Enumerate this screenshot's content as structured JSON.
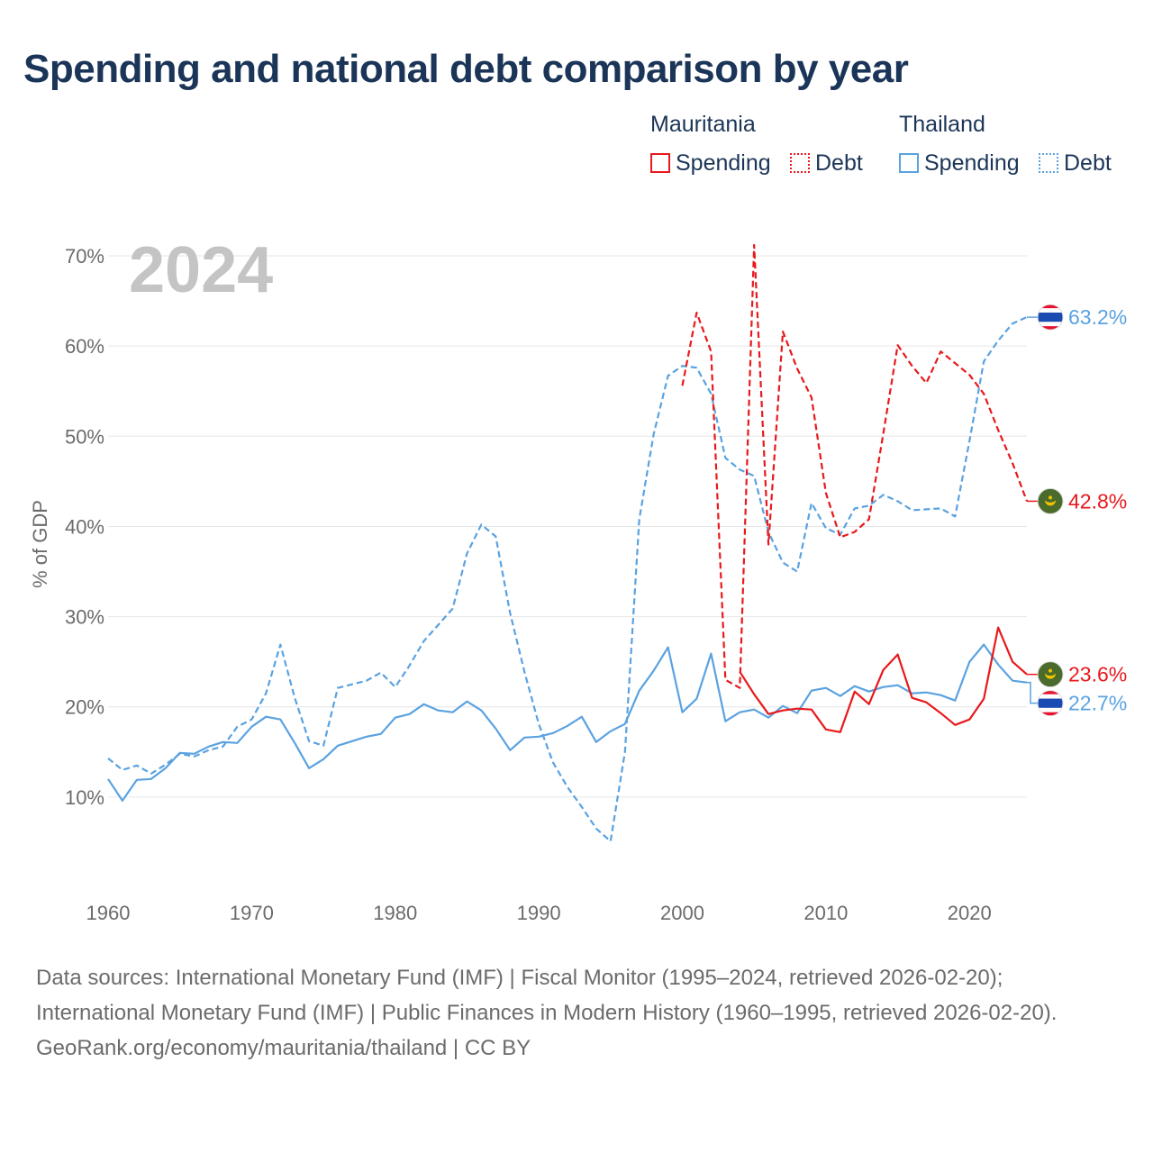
{
  "title": "Spending and national debt comparison by year",
  "legend": {
    "groups": [
      {
        "country": "Mauritania",
        "color": "#e8191c",
        "items": [
          {
            "label": "Spending",
            "style": "solid"
          },
          {
            "label": "Debt",
            "style": "dotted"
          }
        ]
      },
      {
        "country": "Thailand",
        "color": "#5aa2e0",
        "items": [
          {
            "label": "Spending",
            "style": "solid"
          },
          {
            "label": "Debt",
            "style": "dotted"
          }
        ]
      }
    ]
  },
  "footer": {
    "sources": "Data sources: International Monetary Fund (IMF) | Fiscal Monitor (1995–2024, retrieved 2026-02-20); International Monetary Fund (IMF) | Public Finances in Modern History (1960–1995, retrieved 2026-02-20).",
    "attribution": "GeoRank.org/economy/mauritania/thailand | CC BY"
  },
  "chart_data": {
    "type": "line",
    "title": "Spending and national debt comparison by year",
    "year_label": "2024",
    "xlabel": "",
    "ylabel": "% of GDP",
    "xlim": [
      1960,
      2024
    ],
    "ylim": [
      0,
      72
    ],
    "x_ticks": [
      1960,
      1970,
      1980,
      1990,
      2000,
      2010,
      2020
    ],
    "y_ticks": [
      10,
      20,
      30,
      40,
      50,
      60,
      70
    ],
    "y_tick_labels": [
      "10%",
      "20%",
      "30%",
      "40%",
      "50%",
      "60%",
      "70%"
    ],
    "grid": true,
    "series": [
      {
        "name": "Thailand Debt",
        "country": "Thailand",
        "metric": "Debt",
        "color": "#5aa2e0",
        "dash": "dashed",
        "end_label": "63.2%",
        "flag": "thailand-flag-icon",
        "x": [
          1960,
          1961,
          1962,
          1963,
          1964,
          1965,
          1966,
          1967,
          1968,
          1969,
          1970,
          1971,
          1972,
          1973,
          1974,
          1975,
          1976,
          1977,
          1978,
          1979,
          1980,
          1981,
          1982,
          1983,
          1984,
          1985,
          1986,
          1987,
          1988,
          1989,
          1990,
          1991,
          1992,
          1993,
          1994,
          1995,
          1996,
          1997,
          1998,
          1999,
          2000,
          2001,
          2002,
          2003,
          2004,
          2005,
          2006,
          2007,
          2008,
          2009,
          2010,
          2011,
          2012,
          2013,
          2014,
          2015,
          2016,
          2017,
          2018,
          2019,
          2020,
          2021,
          2022,
          2023,
          2024
        ],
        "values": [
          14.3,
          13.0,
          13.5,
          12.6,
          13.6,
          14.8,
          14.5,
          15.2,
          15.6,
          17.8,
          18.6,
          21.5,
          26.9,
          21.0,
          16.2,
          15.7,
          22.1,
          22.5,
          22.9,
          23.8,
          22.2,
          24.6,
          27.3,
          29.1,
          30.9,
          37.0,
          40.2,
          38.9,
          30.4,
          23.9,
          18.1,
          13.8,
          11.1,
          8.9,
          6.5,
          5.1,
          15.0,
          40.8,
          50.2,
          56.7,
          57.8,
          57.6,
          54.7,
          47.6,
          46.3,
          45.6,
          39.4,
          36.0,
          35.0,
          42.6,
          39.8,
          39.1,
          42.0,
          42.3,
          43.5,
          42.8,
          41.8,
          41.9,
          42.0,
          41.1,
          49.5,
          58.3,
          60.6,
          62.5,
          63.2
        ]
      },
      {
        "name": "Thailand Spending",
        "country": "Thailand",
        "metric": "Spending",
        "color": "#5aa2e0",
        "dash": "solid",
        "end_label": "22.7%",
        "flag": "thailand-flag-icon",
        "x": [
          1960,
          1961,
          1962,
          1963,
          1964,
          1965,
          1966,
          1967,
          1968,
          1969,
          1970,
          1971,
          1972,
          1973,
          1974,
          1975,
          1976,
          1977,
          1978,
          1979,
          1980,
          1981,
          1982,
          1983,
          1984,
          1985,
          1986,
          1987,
          1988,
          1989,
          1990,
          1991,
          1992,
          1993,
          1994,
          1995,
          1996,
          1997,
          1998,
          1999,
          2000,
          2001,
          2002,
          2003,
          2004,
          2005,
          2006,
          2007,
          2008,
          2009,
          2010,
          2011,
          2012,
          2013,
          2014,
          2015,
          2016,
          2017,
          2018,
          2019,
          2020,
          2021,
          2022,
          2023,
          2024
        ],
        "values": [
          12.0,
          9.6,
          11.9,
          12.0,
          13.2,
          14.9,
          14.8,
          15.6,
          16.1,
          16.0,
          17.8,
          18.9,
          18.6,
          16.0,
          13.2,
          14.2,
          15.7,
          16.2,
          16.7,
          17.0,
          18.8,
          19.2,
          20.3,
          19.6,
          19.4,
          20.6,
          19.6,
          17.6,
          15.2,
          16.6,
          16.7,
          17.1,
          17.9,
          18.9,
          16.1,
          17.3,
          18.1,
          21.8,
          24.0,
          26.6,
          19.4,
          20.9,
          25.9,
          18.4,
          19.4,
          19.7,
          18.8,
          20.1,
          19.3,
          21.8,
          22.1,
          21.2,
          22.3,
          21.7,
          22.2,
          22.4,
          21.5,
          21.6,
          21.3,
          20.7,
          25.0,
          26.9,
          24.7,
          22.9,
          22.7
        ]
      },
      {
        "name": "Mauritania Debt",
        "country": "Mauritania",
        "metric": "Debt",
        "color": "#e8191c",
        "dash": "dashed",
        "end_label": "42.8%",
        "flag": "mauritania-flag-icon",
        "x": [
          2000,
          2001,
          2002,
          2003,
          2004,
          2005,
          2006,
          2007,
          2008,
          2009,
          2010,
          2011,
          2012,
          2013,
          2014,
          2015,
          2016,
          2017,
          2018,
          2019,
          2020,
          2021,
          2022,
          2023,
          2024
        ],
        "values": [
          55.6,
          63.7,
          59.4,
          23.0,
          22.1,
          71.2,
          38.0,
          61.6,
          57.5,
          54.3,
          43.7,
          38.8,
          39.4,
          40.8,
          50.3,
          60.1,
          57.8,
          55.9,
          59.4,
          58.1,
          56.8,
          54.7,
          50.7,
          47.0,
          42.8
        ]
      },
      {
        "name": "Mauritania Spending",
        "country": "Mauritania",
        "metric": "Spending",
        "color": "#e8191c",
        "dash": "solid",
        "end_label": "23.6%",
        "flag": "mauritania-flag-icon",
        "x": [
          2004,
          2005,
          2006,
          2007,
          2008,
          2009,
          2010,
          2011,
          2012,
          2013,
          2014,
          2015,
          2016,
          2017,
          2018,
          2019,
          2020,
          2021,
          2022,
          2023,
          2024
        ],
        "values": [
          23.9,
          21.4,
          19.2,
          19.6,
          19.8,
          19.7,
          17.5,
          17.2,
          21.7,
          20.3,
          24.1,
          25.8,
          21.0,
          20.5,
          19.3,
          18.0,
          18.6,
          20.9,
          28.8,
          25.0,
          23.6
        ]
      }
    ]
  }
}
